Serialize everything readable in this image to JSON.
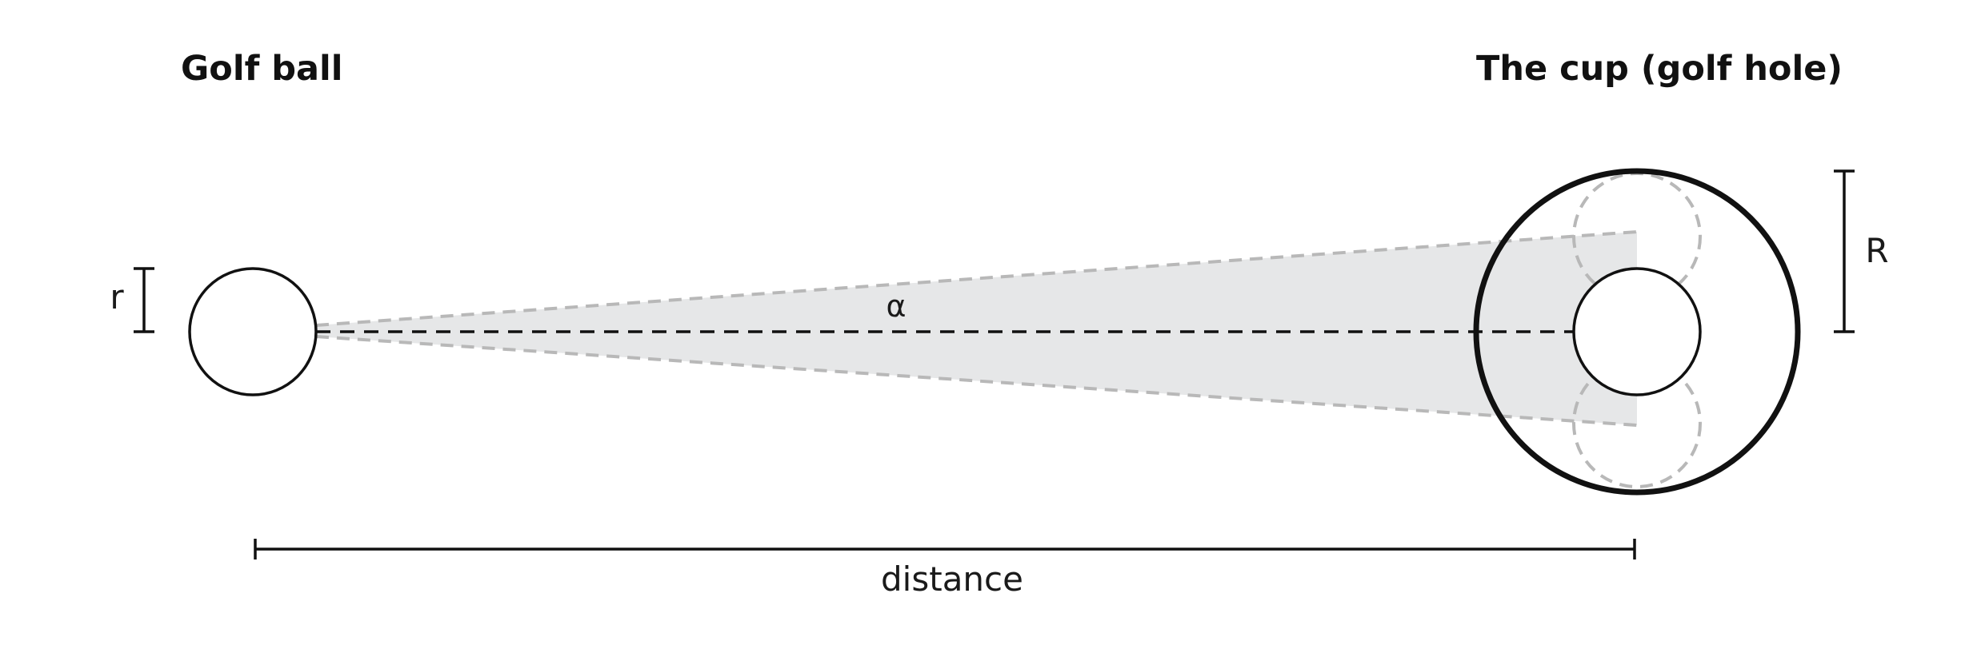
{
  "labels": {
    "ball_title": "Golf ball",
    "cup_title": "The cup (golf hole)",
    "ball_radius": "r",
    "cup_radius": "R",
    "angle": "α",
    "distance": "distance"
  },
  "colors": {
    "line": "#111111",
    "dash_gray": "#b8b8b8",
    "cone_fill": "#e6e7e8",
    "background": "#ffffff"
  }
}
